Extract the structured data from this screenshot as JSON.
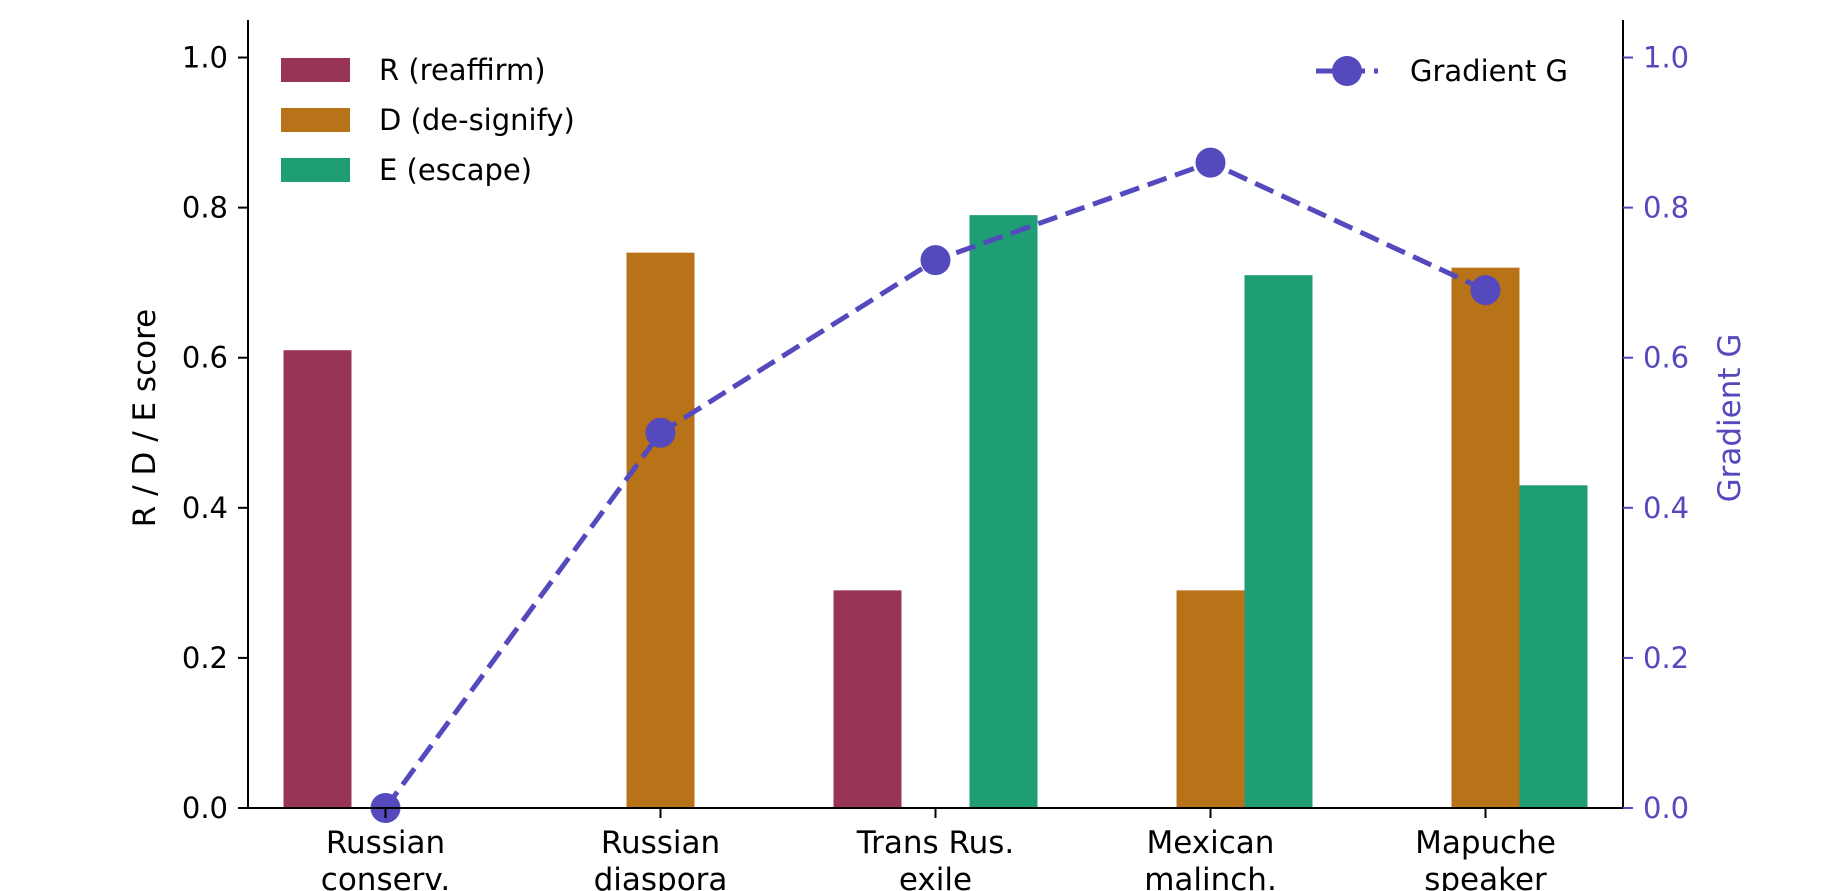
{
  "chart_data": {
    "type": "bar",
    "categories": [
      [
        "Russian",
        "conserv."
      ],
      [
        "Russian",
        "diaspora"
      ],
      [
        "Trans Rus.",
        "exile"
      ],
      [
        "Mexican",
        "malinch."
      ],
      [
        "Mapuche",
        "speaker"
      ]
    ],
    "series": [
      {
        "name": "R (reaffirm)",
        "values": [
          0.61,
          0,
          0.29,
          0,
          0
        ],
        "color": "#983454"
      },
      {
        "name": "D (de-signify)",
        "values": [
          0,
          0.74,
          0,
          0.29,
          0.72
        ],
        "color": "#b87318"
      },
      {
        "name": "E (escape)",
        "values": [
          0,
          0,
          0.79,
          0.71,
          0.43
        ],
        "color": "#1f9e75"
      }
    ],
    "line_series": {
      "name": "Gradient G",
      "values": [
        0.0,
        0.5,
        0.73,
        0.86,
        0.69
      ],
      "color": "#5449bd",
      "style": "dashed",
      "marker": "circle"
    },
    "ylabel": "R / D / E score",
    "y2label": "Gradient G",
    "ylim": [
      0,
      1.05
    ],
    "y2lim": [
      0,
      1.05
    ],
    "yticks": [
      "0.0",
      "0.2",
      "0.4",
      "0.6",
      "0.8",
      "1.0"
    ],
    "y2ticks": [
      "0.0",
      "0.2",
      "0.4",
      "0.6",
      "0.8",
      "1.0"
    ],
    "legend_left_placement": "top-left",
    "legend_right_placement": "top-right",
    "grid": false
  }
}
